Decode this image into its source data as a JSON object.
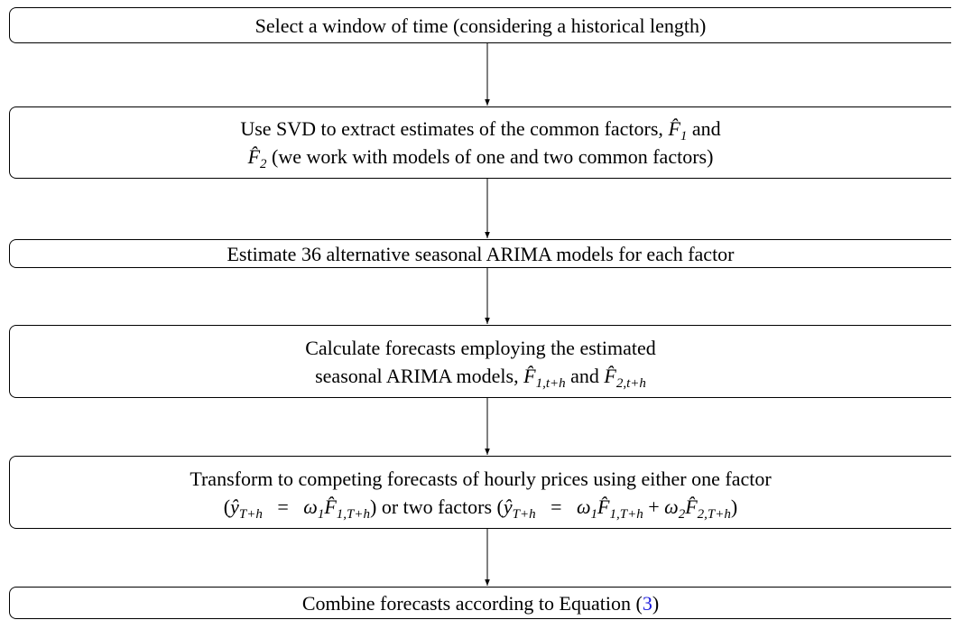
{
  "nodes": [
    {
      "lines": [
        [
          {
            "text": "Select a window of time (considering a historical length)"
          }
        ]
      ]
    },
    {
      "lines": [
        [
          {
            "text": "Use SVD to extract estimates of the common factors, "
          },
          {
            "text": "F̂",
            "style": "math"
          },
          {
            "text": "1",
            "style": "sub"
          },
          {
            "text": " and"
          }
        ],
        [
          {
            "text": "F̂",
            "style": "math"
          },
          {
            "text": "2",
            "style": "sub"
          },
          {
            "text": " (we work with models of one and two common factors)"
          }
        ]
      ]
    },
    {
      "lines": [
        [
          {
            "text": "Estimate 36 alternative seasonal ARIMA models for each factor"
          }
        ]
      ]
    },
    {
      "lines": [
        [
          {
            "text": "Calculate forecasts employing the estimated"
          }
        ],
        [
          {
            "text": "seasonal ARIMA models, "
          },
          {
            "text": "F̂",
            "style": "math"
          },
          {
            "text": "1,t+h",
            "style": "sub"
          },
          {
            "text": " and "
          },
          {
            "text": "F̂",
            "style": "math"
          },
          {
            "text": "2,t+h",
            "style": "sub"
          }
        ]
      ]
    },
    {
      "lines": [
        [
          {
            "text": "Transform to competing forecasts of hourly prices using either one factor"
          }
        ],
        [
          {
            "text": "("
          },
          {
            "text": "ŷ",
            "style": "math"
          },
          {
            "text": "T+h",
            "style": "sub"
          },
          {
            "text": "   =   "
          },
          {
            "text": "ω",
            "style": "math"
          },
          {
            "text": "1",
            "style": "sub"
          },
          {
            "text": "F̂",
            "style": "math"
          },
          {
            "text": "1,T+h",
            "style": "sub"
          },
          {
            "text": ") or two factors ("
          },
          {
            "text": "ŷ",
            "style": "math"
          },
          {
            "text": "T+h",
            "style": "sub"
          },
          {
            "text": "   =   "
          },
          {
            "text": "ω",
            "style": "math"
          },
          {
            "text": "1",
            "style": "sub"
          },
          {
            "text": "F̂",
            "style": "math"
          },
          {
            "text": "1,T+h",
            "style": "sub"
          },
          {
            "text": " + "
          },
          {
            "text": "ω",
            "style": "math"
          },
          {
            "text": "2",
            "style": "sub"
          },
          {
            "text": "F̂",
            "style": "math"
          },
          {
            "text": "2,T+h",
            "style": "sub"
          },
          {
            "text": ")"
          }
        ]
      ]
    },
    {
      "lines": [
        [
          {
            "text": "Combine forecasts according to Equation ("
          },
          {
            "text": "3",
            "style": "link"
          },
          {
            "text": ")"
          }
        ]
      ]
    }
  ]
}
